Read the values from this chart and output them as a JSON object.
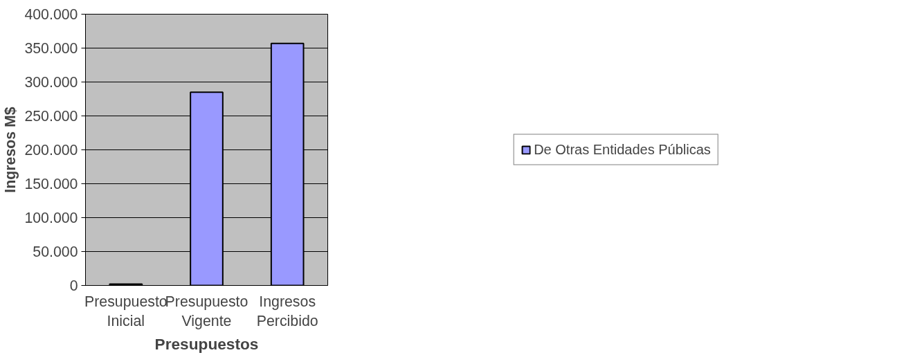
{
  "chart_data": {
    "type": "bar",
    "xlabel": "Presupuestos",
    "ylabel": "Ingresos M$",
    "categories": [
      "Presupuesto Inicial",
      "Presupuesto Vigente",
      "Ingresos Percibido"
    ],
    "series": [
      {
        "name": "De Otras Entidades Públicas",
        "color": "#9999ff",
        "values": [
          2000,
          285000,
          357000
        ]
      }
    ],
    "ylim": [
      0,
      400000
    ],
    "yticks": [
      {
        "value": 0,
        "label": "0"
      },
      {
        "value": 50000,
        "label": "50.000"
      },
      {
        "value": 100000,
        "label": "100.000"
      },
      {
        "value": 150000,
        "label": "150.000"
      },
      {
        "value": 200000,
        "label": "200.000"
      },
      {
        "value": 250000,
        "label": "250.000"
      },
      {
        "value": 300000,
        "label": "300.000"
      },
      {
        "value": 350000,
        "label": "350.000"
      },
      {
        "value": 400000,
        "label": "400.000"
      }
    ],
    "grid": "y",
    "legend": "right"
  }
}
